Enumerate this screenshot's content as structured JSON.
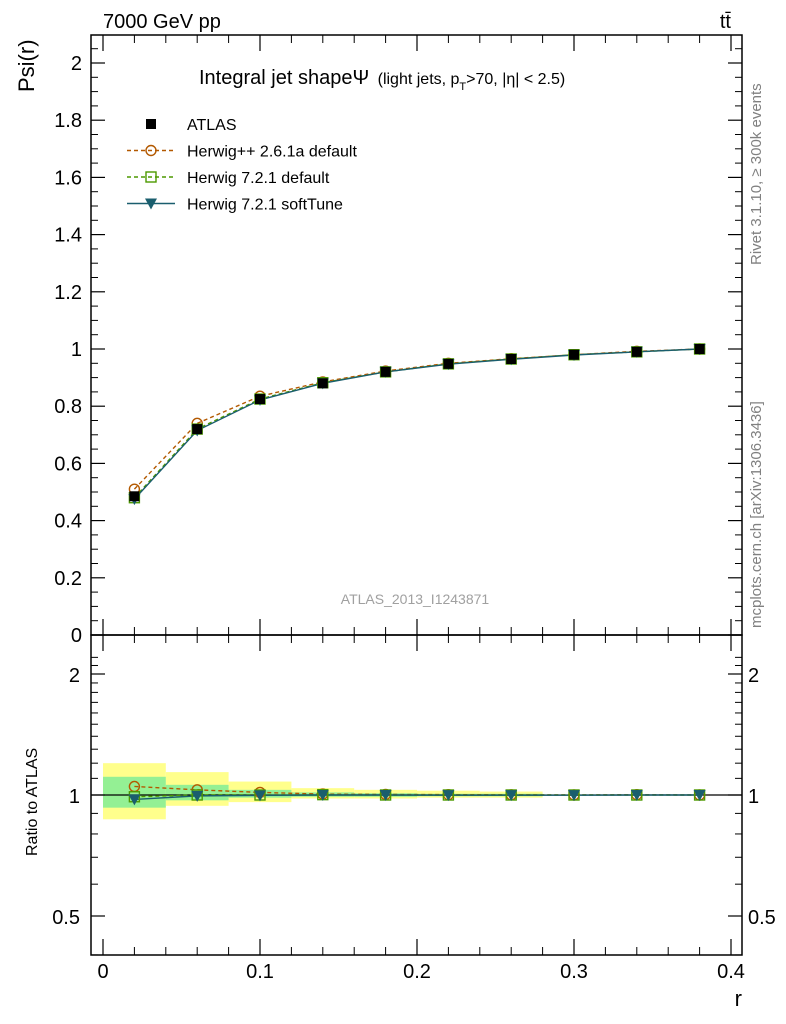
{
  "header": {
    "energy_label": "7000 GeV pp",
    "process_label": "tt̄",
    "rivet_label": "Rivet 3.1.10, ≥ 300k events",
    "mcplots_label": "mcplots.cern.ch [arXiv:1306.3436]"
  },
  "chart_data": [
    {
      "type": "line",
      "title": "Integral jet shapeΨ",
      "title_note": {
        "pre": "(light jets, p",
        "sub": "T",
        "post": ">70, |η| < 2.5)"
      },
      "analysis_id": "ATLAS_2013_I1243871",
      "xlabel": "",
      "ylabel": "Psi(r)",
      "xlim": [
        0,
        0.4
      ],
      "ylim": [
        0,
        2.1
      ],
      "y_ticks": [
        0,
        0.2,
        0.4,
        0.6,
        0.8,
        1,
        1.2,
        1.4,
        1.6,
        1.8,
        2
      ],
      "y_tick_labels": [
        "0",
        "0.2",
        "0.4",
        "0.6",
        "0.8",
        "1",
        "1.2",
        "1.4",
        "1.6",
        "1.8",
        "2"
      ],
      "legend_position": "top-left",
      "x": [
        0.02,
        0.06,
        0.1,
        0.14,
        0.18,
        0.22,
        0.26,
        0.3,
        0.34,
        0.38
      ],
      "series": [
        {
          "name": "ATLAS",
          "marker": "filled-square",
          "color": "#000000",
          "values": [
            0.485,
            0.72,
            0.825,
            0.88,
            0.92,
            0.948,
            0.965,
            0.98,
            0.99,
            1.0
          ]
        },
        {
          "name": "Herwig++ 2.6.1a default",
          "marker": "open-circle",
          "line": "dashed",
          "color": "#b35900",
          "values": [
            0.51,
            0.74,
            0.835,
            0.885,
            0.923,
            0.95,
            0.966,
            0.98,
            0.992,
            1.0
          ]
        },
        {
          "name": "Herwig 7.2.1 default",
          "marker": "open-square",
          "line": "dashed",
          "color": "#4d9900",
          "values": [
            0.48,
            0.72,
            0.825,
            0.882,
            0.92,
            0.948,
            0.965,
            0.98,
            0.99,
            1.0
          ]
        },
        {
          "name": "Herwig 7.2.1 softTune",
          "marker": "filled-triangle-down",
          "line": "solid",
          "color": "#1a5e6e",
          "values": [
            0.475,
            0.715,
            0.822,
            0.88,
            0.92,
            0.947,
            0.964,
            0.979,
            0.99,
            1.0
          ]
        }
      ]
    },
    {
      "type": "line",
      "title": "",
      "xlabel": "r",
      "ylabel": "Ratio to ATLAS",
      "xlim": [
        0,
        0.4
      ],
      "ylim": [
        0.35,
        2.3
      ],
      "y_scale": "log",
      "x_ticks": [
        0,
        0.1,
        0.2,
        0.3,
        0.4
      ],
      "x_tick_labels": [
        "0",
        "0.1",
        "0.2",
        "0.3",
        "0.4"
      ],
      "y_ticks": [
        0.5,
        1,
        2
      ],
      "y_tick_labels": [
        "0.5",
        "1",
        "2"
      ],
      "bands": [
        {
          "name": "total uncertainty",
          "color": "#ffff8c",
          "bins": [
            [
              0,
              0.04,
              0.87,
              1.2
            ],
            [
              0.04,
              0.08,
              0.94,
              1.14
            ],
            [
              0.08,
              0.12,
              0.96,
              1.08
            ],
            [
              0.12,
              0.16,
              0.98,
              1.04
            ],
            [
              0.16,
              0.2,
              0.98,
              1.03
            ],
            [
              0.2,
              0.24,
              0.985,
              1.025
            ],
            [
              0.24,
              0.28,
              0.985,
              1.02
            ]
          ]
        },
        {
          "name": "statistical uncertainty",
          "color": "#94f094",
          "bins": [
            [
              0,
              0.04,
              0.93,
              1.11
            ],
            [
              0.04,
              0.08,
              0.97,
              1.06
            ],
            [
              0.08,
              0.12,
              0.985,
              1.03
            ],
            [
              0.12,
              0.16,
              0.99,
              1.015
            ],
            [
              0.16,
              0.2,
              0.99,
              1.01
            ],
            [
              0.2,
              0.24,
              0.993,
              1.007
            ],
            [
              0.24,
              0.28,
              0.993,
              1.007
            ]
          ]
        }
      ],
      "x": [
        0.02,
        0.06,
        0.1,
        0.14,
        0.18,
        0.22,
        0.26,
        0.3,
        0.34,
        0.38
      ],
      "series": [
        {
          "name": "Herwig++ 2.6.1a default",
          "marker": "open-circle",
          "line": "dashed",
          "color": "#b35900",
          "values": [
            1.05,
            1.03,
            1.015,
            1.005,
            1.003,
            1.002,
            1.001,
            1.0,
            1.002,
            1.0
          ]
        },
        {
          "name": "Herwig 7.2.1 default",
          "marker": "open-square",
          "line": "dashed",
          "color": "#4d9900",
          "values": [
            0.99,
            1.0,
            1.0,
            1.002,
            1.0,
            1.0,
            1.0,
            1.0,
            1.0,
            1.0
          ]
        },
        {
          "name": "Herwig 7.2.1 softTune",
          "marker": "filled-triangle-down",
          "line": "solid",
          "color": "#1a5e6e",
          "values": [
            0.975,
            0.995,
            0.998,
            1.0,
            1.0,
            0.999,
            0.999,
            0.999,
            1.0,
            1.0
          ]
        }
      ]
    }
  ]
}
